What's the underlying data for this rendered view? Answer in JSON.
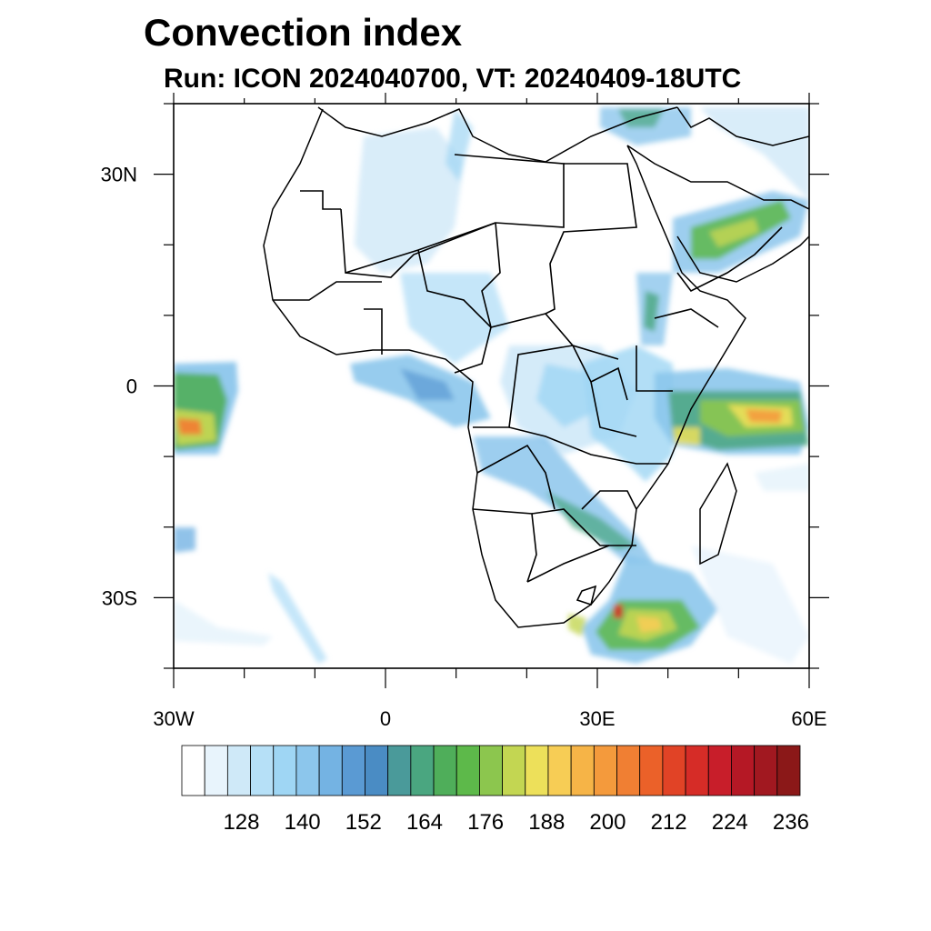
{
  "header": {
    "title": "Convection index",
    "subtitle": "Run: ICON 2024040700,  VT: 20240409-18UTC"
  },
  "map": {
    "lon_range": [
      -30,
      60
    ],
    "lat_range": [
      -40,
      40
    ],
    "x_ticks": [
      {
        "lon": -30,
        "label": "30W"
      },
      {
        "lon": 0,
        "label": "0"
      },
      {
        "lon": 30,
        "label": "30E"
      },
      {
        "lon": 60,
        "label": "60E"
      }
    ],
    "y_ticks": [
      {
        "lat": 30,
        "label": "30N"
      },
      {
        "lat": 0,
        "label": "0"
      },
      {
        "lat": -30,
        "label": "30S"
      }
    ]
  },
  "colorbar": {
    "colors": [
      "#ffffff",
      "#e8f4fc",
      "#cfe9f8",
      "#b6e0f7",
      "#9fd6f4",
      "#8cc6ec",
      "#74b3e3",
      "#5a9ad3",
      "#4a8cc4",
      "#4a9a9a",
      "#4aa680",
      "#4fae5a",
      "#5db94a",
      "#8cc64e",
      "#c3d652",
      "#ede05a",
      "#f7cd55",
      "#f6b447",
      "#f49a3c",
      "#f07f33",
      "#eb6129",
      "#e14326",
      "#d62c27",
      "#c81e2a",
      "#b51825",
      "#a11820",
      "#8b1818"
    ],
    "labels": [
      "128",
      "140",
      "152",
      "164",
      "176",
      "188",
      "200",
      "212",
      "224",
      "236"
    ]
  }
}
